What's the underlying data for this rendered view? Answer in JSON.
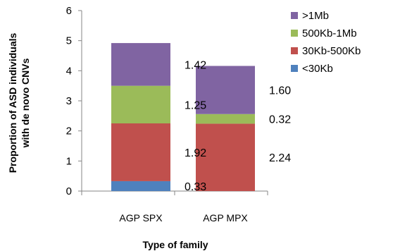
{
  "chart_data": {
    "type": "bar",
    "stacked": true,
    "title": "",
    "xlabel": "Type of family",
    "ylabel_lines": [
      "Proportion of ASD individuals",
      "with de novo CNVs"
    ],
    "ylim": [
      0,
      6
    ],
    "yticks": [
      "0",
      "1",
      "2",
      "3",
      "4",
      "5",
      "6"
    ],
    "grid": false,
    "legend_position": "right",
    "categories": [
      "AGP SPX",
      "AGP MPX"
    ],
    "series": [
      {
        "name": "<30Kb",
        "values": [
          0.33,
          0
        ],
        "labels": [
          "0.33",
          ""
        ],
        "color": "#4f81bd"
      },
      {
        "name": "30Kb-500Kb",
        "values": [
          1.92,
          2.24
        ],
        "labels": [
          "1.92",
          "2.24"
        ],
        "color": "#c0504d"
      },
      {
        "name": "500Kb-1Mb",
        "values": [
          1.25,
          0.32
        ],
        "labels": [
          "1.25",
          "0.32"
        ],
        "color": "#9bbb59"
      },
      {
        "name": ">1Mb",
        "values": [
          1.42,
          1.6
        ],
        "labels": [
          "1.42",
          "1.60"
        ],
        "color": "#8064a2"
      }
    ],
    "legend_order": [
      ">1Mb",
      "500Kb-1Mb",
      "30Kb-500Kb",
      "<30Kb"
    ]
  }
}
